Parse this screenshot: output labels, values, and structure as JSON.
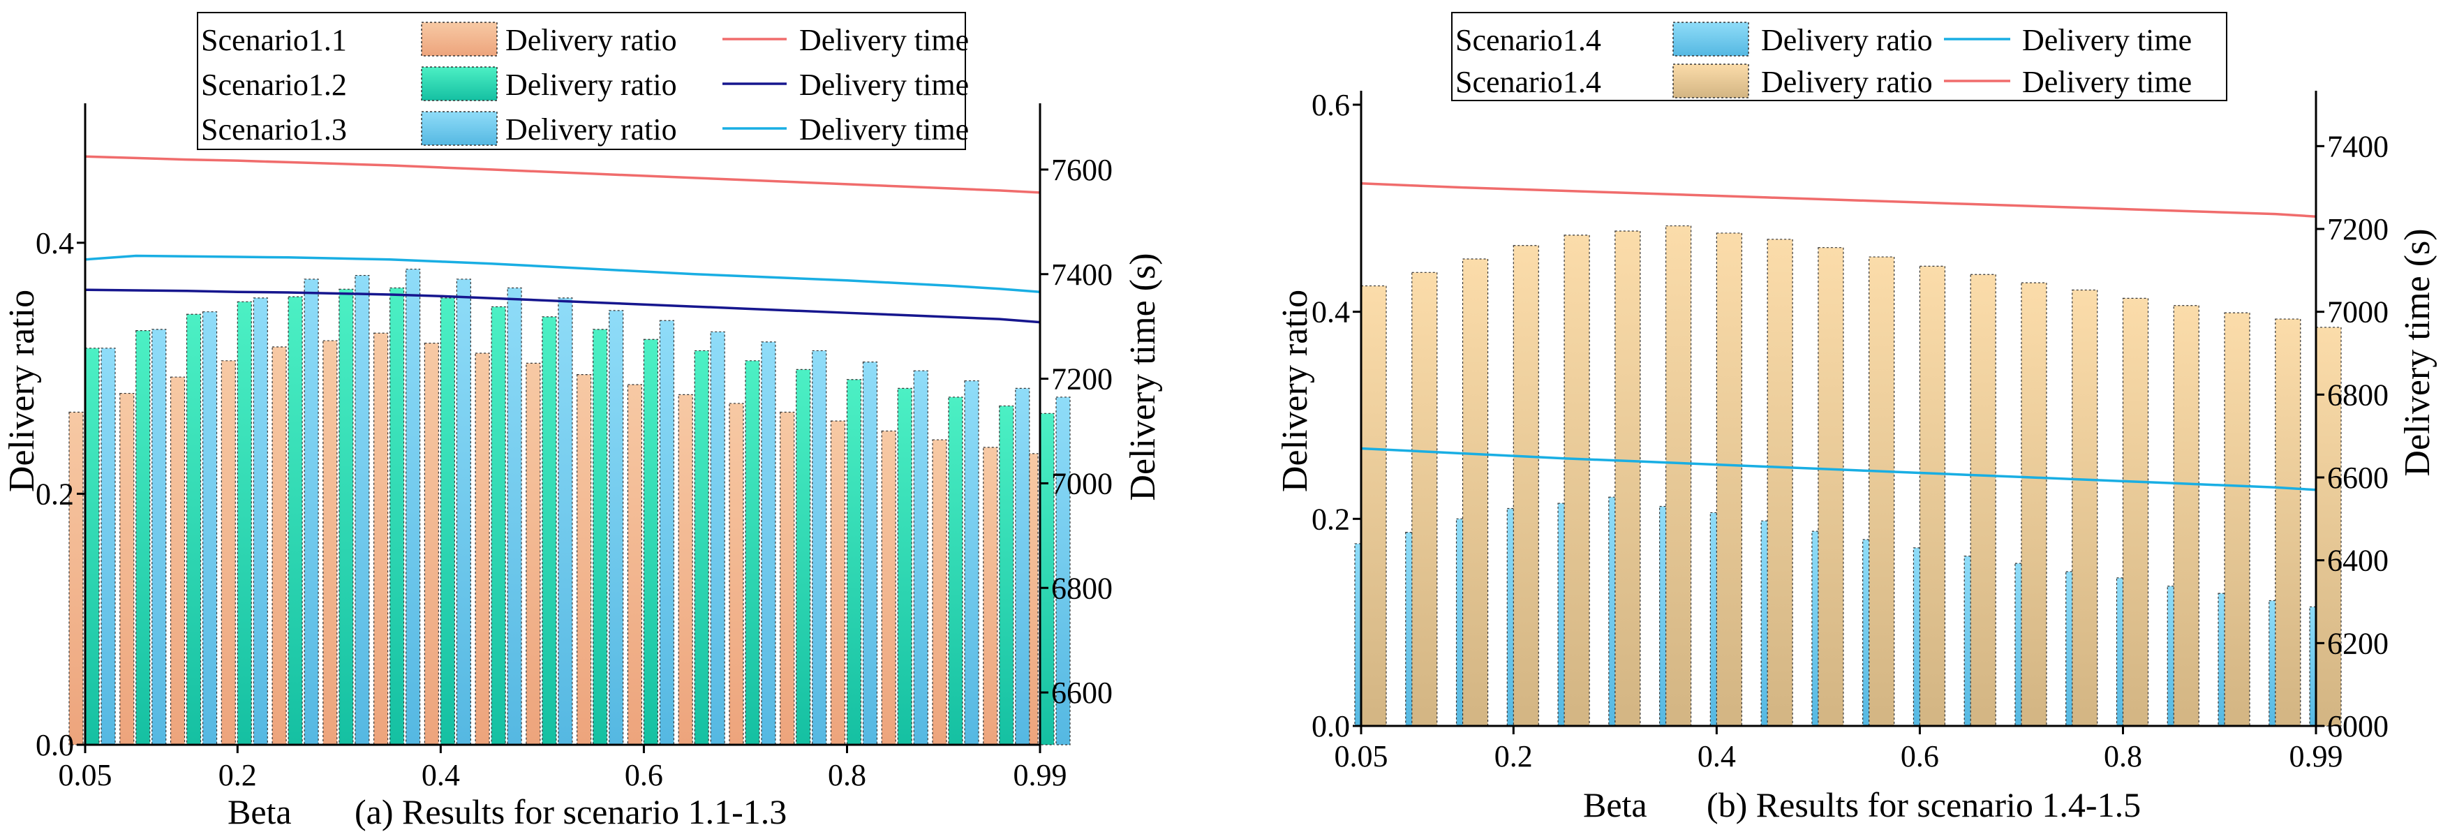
{
  "colors": {
    "s11_bar_top": "#f7c9a4",
    "s11_bar_bottom": "#eda47c",
    "s12_bar_top": "#4cf0c4",
    "s12_bar_bottom": "#15c0a2",
    "s13_bar_top": "#8fdcf8",
    "s13_bar_bottom": "#55b8e2",
    "s15_bar_top": "#fbdcaa",
    "s15_bar_bottom": "#d3b583",
    "red_line": "#f06c6c",
    "navy_line": "#16168e",
    "cyan_line": "#19aee3"
  },
  "chart_data": [
    {
      "type": "bar",
      "caption": "(a) Results for scenario 1.1-1.3",
      "xlabel": "Beta",
      "ylabel": "Delivery ratio",
      "ylabel_right": "Delivery time (s)",
      "x": [
        0.05,
        0.1,
        0.15,
        0.2,
        0.25,
        0.3,
        0.35,
        0.4,
        0.45,
        0.5,
        0.55,
        0.6,
        0.65,
        0.7,
        0.75,
        0.8,
        0.85,
        0.9,
        0.95,
        0.99
      ],
      "xlim": [
        0.05,
        0.99
      ],
      "ylim": [
        0,
        0.5
      ],
      "ylim_right": [
        6500,
        7700
      ],
      "xticks": [
        "0.05",
        "0.2",
        "0.4",
        "0.6",
        "0.8",
        "0.99"
      ],
      "xtick_values": [
        0.05,
        0.2,
        0.4,
        0.6,
        0.8,
        0.99
      ],
      "yticks": [
        "0.0",
        "0.2",
        "0.4"
      ],
      "ytick_values": [
        0,
        0.2,
        0.4
      ],
      "yticks_right": [
        "6600",
        "6800",
        "7000",
        "7200",
        "7400",
        "7600"
      ],
      "ytick_values_right": [
        6600,
        6800,
        7000,
        7200,
        7400,
        7600
      ],
      "legend": {
        "position": "top-left"
      },
      "bar_series": [
        {
          "scenario": "Scenario1.1",
          "name": "Delivery ratio",
          "color_key": "s11",
          "values": [
            0.265,
            0.28,
            0.293,
            0.306,
            0.317,
            0.322,
            0.328,
            0.32,
            0.312,
            0.304,
            0.295,
            0.287,
            0.279,
            0.272,
            0.265,
            0.258,
            0.25,
            0.243,
            0.237,
            0.232
          ]
        },
        {
          "scenario": "Scenario1.2",
          "name": "Delivery ratio",
          "color_key": "s12",
          "values": [
            0.316,
            0.33,
            0.343,
            0.353,
            0.357,
            0.363,
            0.364,
            0.356,
            0.349,
            0.341,
            0.331,
            0.323,
            0.314,
            0.306,
            0.299,
            0.291,
            0.284,
            0.277,
            0.27,
            0.264
          ]
        },
        {
          "scenario": "Scenario1.3",
          "name": "Delivery ratio",
          "color_key": "s13",
          "values": [
            0.316,
            0.331,
            0.345,
            0.356,
            0.371,
            0.374,
            0.379,
            0.371,
            0.364,
            0.356,
            0.346,
            0.338,
            0.329,
            0.321,
            0.314,
            0.305,
            0.298,
            0.29,
            0.284,
            0.277
          ]
        }
      ],
      "line_series": [
        {
          "scenario": "Scenario1.1",
          "name": "Delivery time",
          "color_key": "red_line",
          "values": [
            7625,
            7622,
            7619,
            7617,
            7614,
            7611,
            7608,
            7604,
            7600,
            7596,
            7592,
            7588,
            7584,
            7580,
            7576,
            7572,
            7568,
            7564,
            7560,
            7556
          ]
        },
        {
          "scenario": "Scenario1.2",
          "name": "Delivery time",
          "color_key": "navy_line",
          "values": [
            7370,
            7369,
            7368,
            7366,
            7365,
            7363,
            7361,
            7358,
            7354,
            7350,
            7346,
            7342,
            7338,
            7334,
            7330,
            7326,
            7322,
            7318,
            7314,
            7308
          ]
        },
        {
          "scenario": "Scenario1.3",
          "name": "Delivery time",
          "color_key": "cyan_line",
          "values": [
            7428,
            7435,
            7434,
            7433,
            7432,
            7430,
            7428,
            7424,
            7420,
            7415,
            7410,
            7405,
            7400,
            7396,
            7392,
            7388,
            7383,
            7378,
            7372,
            7366
          ]
        }
      ]
    },
    {
      "type": "bar",
      "caption": "(b) Results for scenario 1.4-1.5",
      "xlabel": "Beta",
      "ylabel": "Delivery ratio",
      "ylabel_right": "Delivery time (s)",
      "x": [
        0.05,
        0.1,
        0.15,
        0.2,
        0.25,
        0.3,
        0.35,
        0.4,
        0.45,
        0.5,
        0.55,
        0.6,
        0.65,
        0.7,
        0.75,
        0.8,
        0.85,
        0.9,
        0.95,
        0.99
      ],
      "xlim": [
        0.05,
        0.99
      ],
      "ylim": [
        0,
        0.6
      ],
      "ylim_right": [
        6000,
        7500
      ],
      "xticks": [
        "0.05",
        "0.2",
        "0.4",
        "0.6",
        "0.8",
        "0.99"
      ],
      "xtick_values": [
        0.05,
        0.2,
        0.4,
        0.6,
        0.8,
        0.99
      ],
      "yticks": [
        "0.0",
        "0.2",
        "0.4",
        "0.6"
      ],
      "ytick_values": [
        0,
        0.2,
        0.4,
        0.6
      ],
      "yticks_right": [
        "6000",
        "6200",
        "6400",
        "6600",
        "6800",
        "7000",
        "7200",
        "7400"
      ],
      "ytick_values_right": [
        6000,
        6200,
        6400,
        6600,
        6800,
        7000,
        7200,
        7400
      ],
      "legend": {
        "position": "top-left"
      },
      "bar_series": [
        {
          "scenario": "Scenario1.4",
          "name": "Delivery ratio",
          "color_key": "s13",
          "values": [
            0.176,
            0.187,
            0.2,
            0.21,
            0.215,
            0.221,
            0.212,
            0.206,
            0.198,
            0.188,
            0.18,
            0.172,
            0.164,
            0.157,
            0.149,
            0.143,
            0.135,
            0.128,
            0.121,
            0.115
          ]
        },
        {
          "scenario": "Scenario1.4",
          "name": "Delivery ratio",
          "color_key": "s15",
          "values": [
            0.425,
            0.438,
            0.451,
            0.464,
            0.474,
            0.478,
            0.483,
            0.476,
            0.47,
            0.462,
            0.453,
            0.444,
            0.436,
            0.428,
            0.421,
            0.413,
            0.406,
            0.399,
            0.393,
            0.385
          ]
        }
      ],
      "line_series": [
        {
          "scenario": "Scenario1.4",
          "name": "Delivery time",
          "color_key": "cyan_line",
          "values": [
            6670,
            6664,
            6658,
            6652,
            6646,
            6641,
            6636,
            6631,
            6626,
            6621,
            6616,
            6611,
            6606,
            6601,
            6596,
            6591,
            6586,
            6581,
            6576,
            6570
          ]
        },
        {
          "scenario": "Scenario1.4",
          "name": "Delivery time",
          "color_key": "red_line",
          "values": [
            7310,
            7305,
            7300,
            7296,
            7292,
            7288,
            7284,
            7280,
            7276,
            7272,
            7268,
            7264,
            7260,
            7256,
            7252,
            7248,
            7244,
            7240,
            7236,
            7230
          ]
        }
      ]
    }
  ]
}
